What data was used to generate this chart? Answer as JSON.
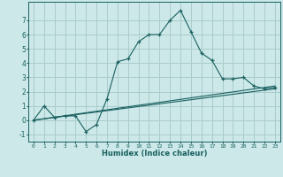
{
  "xlabel": "Humidex (Indice chaleur)",
  "background_color": "#cce8e8",
  "grid_color": "#aacccc",
  "line_color": "#1a6060",
  "xlim": [
    -0.5,
    23.5
  ],
  "ylim": [
    -1.5,
    8.3
  ],
  "xticks": [
    0,
    1,
    2,
    3,
    4,
    5,
    6,
    7,
    8,
    9,
    10,
    11,
    12,
    13,
    14,
    15,
    16,
    17,
    18,
    19,
    20,
    21,
    22,
    23
  ],
  "yticks": [
    -1,
    0,
    1,
    2,
    3,
    4,
    5,
    6,
    7
  ],
  "line1_x": [
    0,
    1,
    2,
    3,
    4,
    5,
    6,
    7,
    8,
    9,
    10,
    11,
    12,
    13,
    14,
    15,
    16,
    17,
    18,
    19,
    20,
    21,
    22,
    23
  ],
  "line1_y": [
    0.0,
    1.0,
    0.2,
    0.3,
    0.3,
    -0.8,
    -0.3,
    1.5,
    4.1,
    4.3,
    5.5,
    6.0,
    6.0,
    7.0,
    7.7,
    6.2,
    4.7,
    4.2,
    2.9,
    2.9,
    3.0,
    2.4,
    2.2,
    2.3
  ],
  "line2_x": [
    0,
    23
  ],
  "line2_y": [
    0.0,
    2.2
  ],
  "line3_x": [
    0,
    23
  ],
  "line3_y": [
    0.0,
    2.4
  ]
}
